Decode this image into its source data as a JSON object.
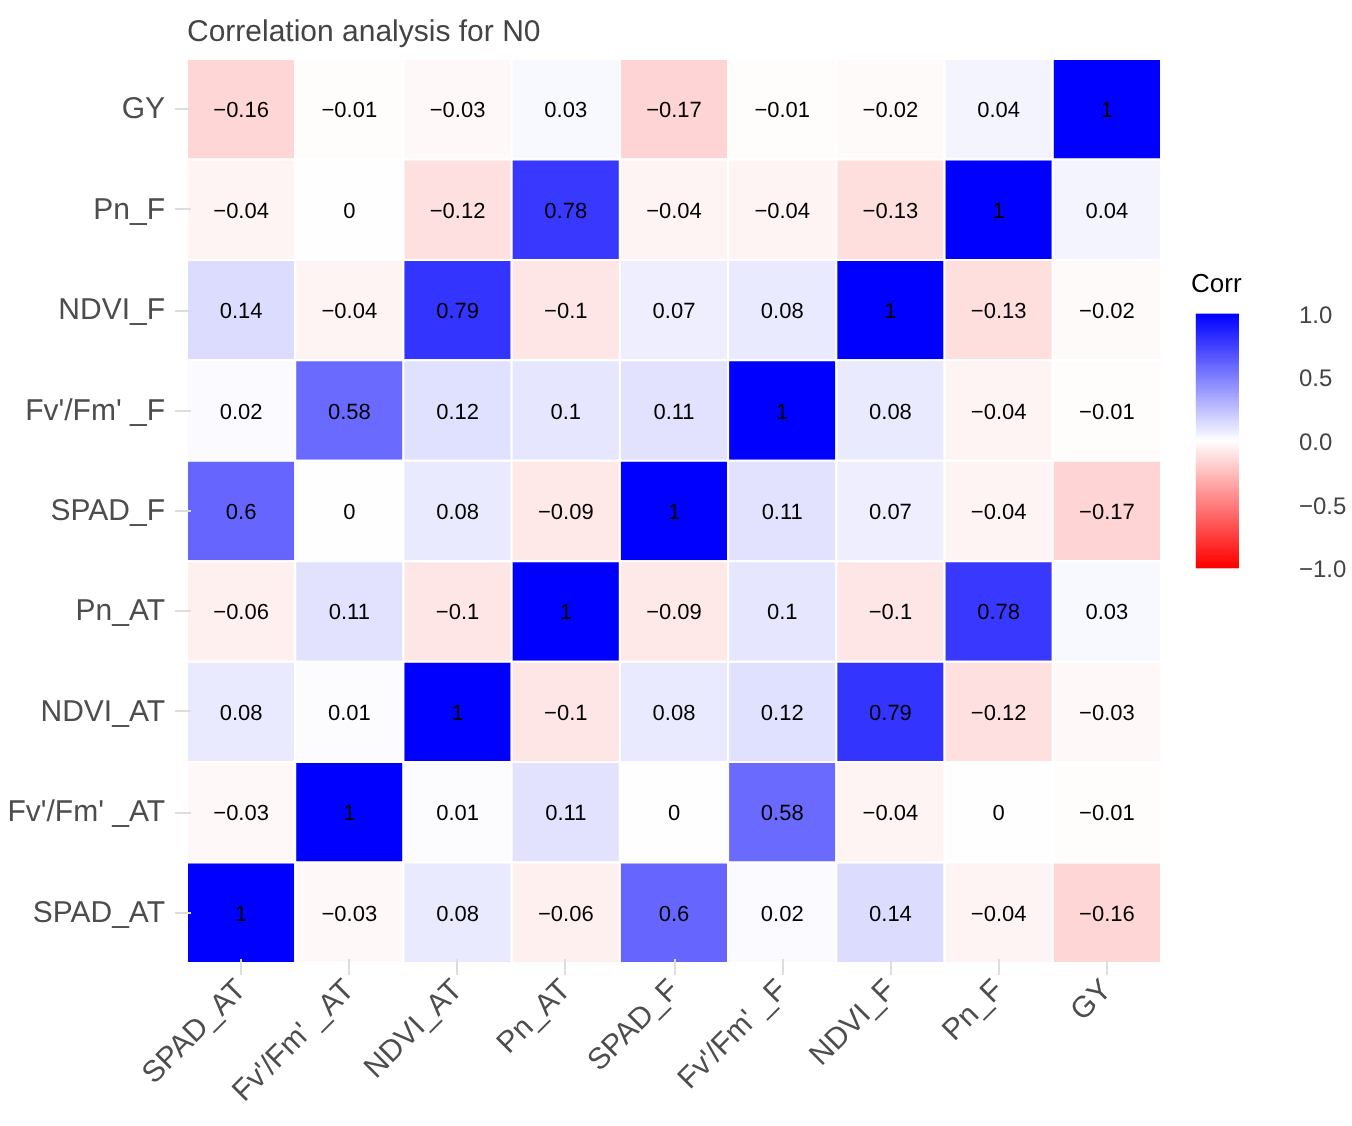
{
  "chart_data": {
    "type": "heatmap",
    "title": "Correlation analysis for N0",
    "legend_title": "Corr",
    "categories": [
      "SPAD_AT",
      "Fv'/Fm' _AT",
      "NDVI_AT",
      "Pn_AT",
      "SPAD_F",
      "Fv'/Fm' _F",
      "NDVI_F",
      "Pn_F",
      "GY"
    ],
    "y_categories": [
      "GY",
      "Pn_F",
      "NDVI_F",
      "Fv'/Fm' _F",
      "SPAD_F",
      "Pn_AT",
      "NDVI_AT",
      "Fv'/Fm' _AT",
      "SPAD_AT"
    ],
    "cells": [
      [
        -0.16,
        -0.01,
        -0.03,
        0.03,
        -0.17,
        -0.01,
        -0.02,
        0.04,
        1
      ],
      [
        -0.04,
        0,
        -0.12,
        0.78,
        -0.04,
        -0.04,
        -0.13,
        1,
        0.04
      ],
      [
        0.14,
        -0.04,
        0.79,
        -0.1,
        0.07,
        0.08,
        1,
        -0.13,
        -0.02
      ],
      [
        0.02,
        0.58,
        0.12,
        0.1,
        0.11,
        1,
        0.08,
        -0.04,
        -0.01
      ],
      [
        0.6,
        0,
        0.08,
        -0.09,
        1,
        0.11,
        0.07,
        -0.04,
        -0.17
      ],
      [
        -0.06,
        0.11,
        -0.1,
        1,
        -0.09,
        0.1,
        -0.1,
        0.78,
        0.03
      ],
      [
        0.08,
        0.01,
        1,
        -0.1,
        0.08,
        0.12,
        0.79,
        -0.12,
        -0.03
      ],
      [
        -0.03,
        1,
        0.01,
        0.11,
        0,
        0.58,
        -0.04,
        0,
        -0.01
      ],
      [
        1,
        -0.03,
        0.08,
        -0.06,
        0.6,
        0.02,
        0.14,
        -0.04,
        -0.16
      ]
    ],
    "clim": [
      -1,
      1
    ],
    "cticks": [
      {
        "value": 1,
        "label": "1.0"
      },
      {
        "value": 0.5,
        "label": "0.5"
      },
      {
        "value": 0,
        "label": "0.0"
      },
      {
        "value": -0.5,
        "label": "−0.5"
      },
      {
        "value": -1,
        "label": "−1.0"
      }
    ],
    "data_labels": true
  }
}
